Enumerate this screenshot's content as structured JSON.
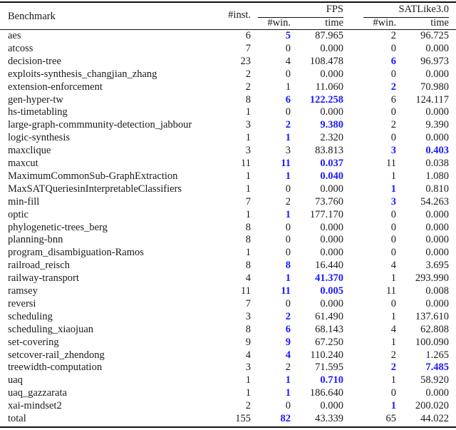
{
  "header": {
    "benchmark": "Benchmark",
    "inst": "#inst.",
    "group1": "FPS",
    "group2": "SATLike3.0",
    "win": "#win.",
    "time": "time"
  },
  "highlight_color": "#1a1aff",
  "rows": [
    {
      "cells": [
        "aes",
        "6",
        "5",
        "87.965",
        "2",
        "96.725"
      ],
      "bold": [
        2
      ]
    },
    {
      "cells": [
        "atcoss",
        "7",
        "0",
        "0.000",
        "0",
        "0.000"
      ],
      "bold": []
    },
    {
      "cells": [
        "decision-tree",
        "23",
        "4",
        "108.478",
        "6",
        "96.973"
      ],
      "bold": [
        4
      ]
    },
    {
      "cells": [
        "exploits-synthesis_changjian_zhang",
        "2",
        "0",
        "0.000",
        "0",
        "0.000"
      ],
      "bold": []
    },
    {
      "cells": [
        "extension-enforcement",
        "2",
        "1",
        "11.060",
        "2",
        "70.980"
      ],
      "bold": [
        4
      ]
    },
    {
      "cells": [
        "gen-hyper-tw",
        "8",
        "6",
        "122.258",
        "6",
        "124.117"
      ],
      "bold": [
        2,
        3
      ]
    },
    {
      "cells": [
        "hs-timetabling",
        "1",
        "0",
        "0.000",
        "0",
        "0.000"
      ],
      "bold": []
    },
    {
      "cells": [
        "large-graph-commmunity-detection_jabbour",
        "3",
        "2",
        "9.380",
        "2",
        "9.390"
      ],
      "bold": [
        2,
        3
      ]
    },
    {
      "cells": [
        "logic-synthesis",
        "1",
        "1",
        "2.320",
        "0",
        "0.000"
      ],
      "bold": [
        2
      ]
    },
    {
      "cells": [
        "maxclique",
        "3",
        "3",
        "83.813",
        "3",
        "0.403"
      ],
      "bold": [
        4,
        5
      ]
    },
    {
      "cells": [
        "maxcut",
        "11",
        "11",
        "0.037",
        "11",
        "0.038"
      ],
      "bold": [
        2,
        3
      ]
    },
    {
      "cells": [
        "MaximumCommonSub-GraphExtraction",
        "1",
        "1",
        "0.040",
        "1",
        "1.080"
      ],
      "bold": [
        2,
        3
      ]
    },
    {
      "cells": [
        "MaxSATQueriesinInterpretableClassifiers",
        "1",
        "0",
        "0.000",
        "1",
        "0.810"
      ],
      "bold": [
        4
      ]
    },
    {
      "cells": [
        "min-fill",
        "7",
        "2",
        "73.760",
        "3",
        "54.263"
      ],
      "bold": [
        4
      ]
    },
    {
      "cells": [
        "optic",
        "1",
        "1",
        "177.170",
        "0",
        "0.000"
      ],
      "bold": [
        2
      ]
    },
    {
      "cells": [
        "phylogenetic-trees_berg",
        "8",
        "0",
        "0.000",
        "0",
        "0.000"
      ],
      "bold": []
    },
    {
      "cells": [
        "planning-bnn",
        "8",
        "0",
        "0.000",
        "0",
        "0.000"
      ],
      "bold": []
    },
    {
      "cells": [
        "program_disambiguation-Ramos",
        "1",
        "0",
        "0.000",
        "0",
        "0.000"
      ],
      "bold": []
    },
    {
      "cells": [
        "railroad_reisch",
        "8",
        "8",
        "16.440",
        "4",
        "3.695"
      ],
      "bold": [
        2
      ]
    },
    {
      "cells": [
        "railway-transport",
        "4",
        "1",
        "41.370",
        "1",
        "293.990"
      ],
      "bold": [
        2,
        3
      ]
    },
    {
      "cells": [
        "ramsey",
        "11",
        "11",
        "0.005",
        "11",
        "0.008"
      ],
      "bold": [
        2,
        3
      ]
    },
    {
      "cells": [
        "reversi",
        "7",
        "0",
        "0.000",
        "0",
        "0.000"
      ],
      "bold": []
    },
    {
      "cells": [
        "scheduling",
        "3",
        "2",
        "61.490",
        "1",
        "137.610"
      ],
      "bold": [
        2
      ]
    },
    {
      "cells": [
        "scheduling_xiaojuan",
        "8",
        "6",
        "68.143",
        "4",
        "62.808"
      ],
      "bold": [
        2
      ]
    },
    {
      "cells": [
        "set-covering",
        "9",
        "9",
        "67.250",
        "1",
        "100.090"
      ],
      "bold": [
        2
      ]
    },
    {
      "cells": [
        "setcover-rail_zhendong",
        "4",
        "4",
        "110.240",
        "2",
        "1.265"
      ],
      "bold": [
        2
      ]
    },
    {
      "cells": [
        "treewidth-computation",
        "3",
        "2",
        "71.595",
        "2",
        "7.485"
      ],
      "bold": [
        4,
        5
      ]
    },
    {
      "cells": [
        "uaq",
        "1",
        "1",
        "0.710",
        "1",
        "58.920"
      ],
      "bold": [
        2,
        3
      ]
    },
    {
      "cells": [
        "uaq_gazzarata",
        "1",
        "1",
        "186.640",
        "0",
        "0.000"
      ],
      "bold": [
        2
      ]
    },
    {
      "cells": [
        "xai-mindset2",
        "2",
        "0",
        "0.000",
        "1",
        "200.020"
      ],
      "bold": [
        4
      ]
    },
    {
      "cells": [
        "total",
        "155",
        "82",
        "43.339",
        "65",
        "44.022"
      ],
      "bold": [
        2
      ]
    }
  ]
}
